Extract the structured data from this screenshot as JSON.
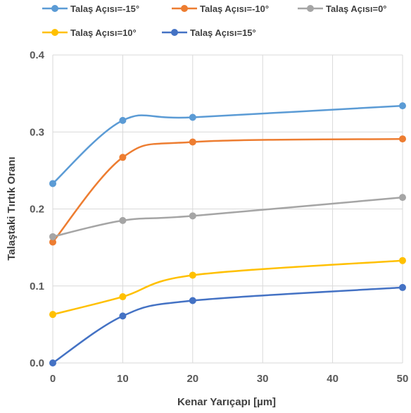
{
  "chart_data": {
    "type": "line",
    "title": "",
    "xlabel": "Kenar Yarıçapı [µm]",
    "ylabel": "Talaştaki Tırtık Oranı",
    "x": [
      0,
      10,
      20,
      50
    ],
    "xlim": [
      0,
      50
    ],
    "ylim": [
      0,
      0.4
    ],
    "x_ticks": [
      0,
      10,
      20,
      30,
      40,
      50
    ],
    "y_ticks": [
      0.0,
      0.1,
      0.2,
      0.3,
      0.4
    ],
    "x_tick_labels": [
      "0",
      "10",
      "20",
      "30",
      "40",
      "50"
    ],
    "y_tick_labels": [
      "0.0",
      "0.1",
      "0.2",
      "0.3",
      "0.4"
    ],
    "grid": true,
    "smooth": true,
    "legend_position": "top",
    "series": [
      {
        "name": "Talaş Açısı=-15°",
        "color": "#5B9BD5",
        "values": [
          0.233,
          0.315,
          0.319,
          0.334
        ]
      },
      {
        "name": "Talaş Açısı=-10°",
        "color": "#ED7D31",
        "values": [
          0.157,
          0.267,
          0.287,
          0.291
        ]
      },
      {
        "name": "Talaş Açısı=0°",
        "color": "#A5A5A5",
        "values": [
          0.164,
          0.185,
          0.191,
          0.215
        ]
      },
      {
        "name": "Talaş Açısı=10°",
        "color": "#FFC000",
        "values": [
          0.063,
          0.086,
          0.114,
          0.133
        ]
      },
      {
        "name": "Talaş Açısı=15°",
        "color": "#4472C4",
        "values": [
          0.0,
          0.061,
          0.081,
          0.098
        ]
      }
    ]
  }
}
